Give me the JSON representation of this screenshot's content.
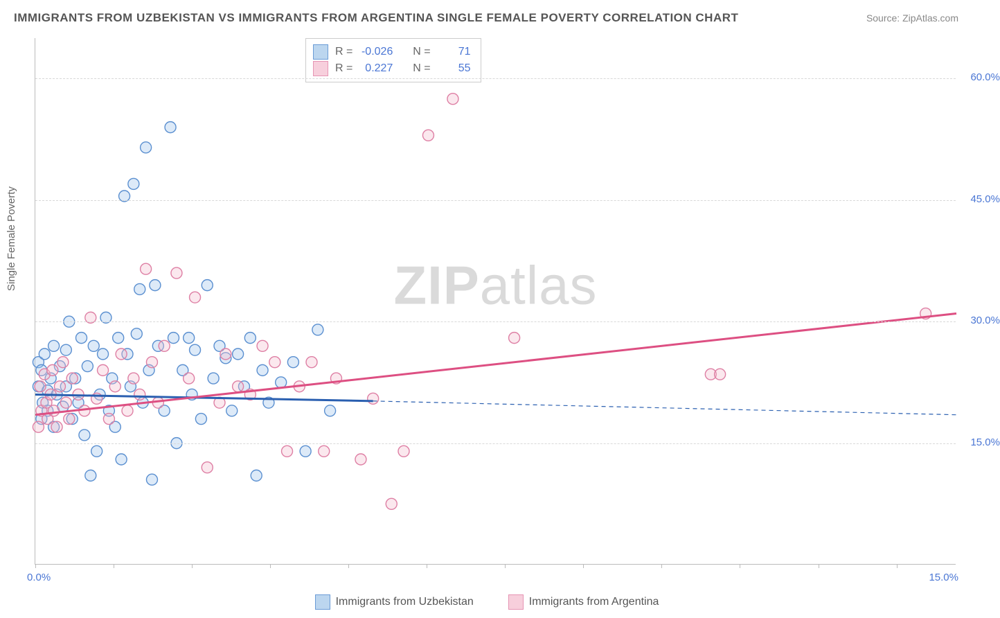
{
  "title": "IMMIGRANTS FROM UZBEKISTAN VS IMMIGRANTS FROM ARGENTINA SINGLE FEMALE POVERTY CORRELATION CHART",
  "source_label": "Source:",
  "source_name": "ZipAtlas.com",
  "watermark_bold": "ZIP",
  "watermark_light": "atlas",
  "chart": {
    "type": "scatter",
    "ylabel": "Single Female Poverty",
    "xlim": [
      0,
      15
    ],
    "ylim": [
      0,
      65
    ],
    "x_ticks_labels": {
      "min": "0.0%",
      "max": "15.0%"
    },
    "x_tick_positions_pct": [
      0,
      8.5,
      17,
      25.5,
      34,
      42.5,
      51,
      59.5,
      68,
      76.5,
      85,
      93.5
    ],
    "y_gridlines": [
      15,
      30,
      45,
      60
    ],
    "y_tick_labels": [
      "15.0%",
      "30.0%",
      "45.0%",
      "60.0%"
    ],
    "background_color": "#ffffff",
    "grid_color": "#d8d8d8",
    "axis_color": "#bbbbbb",
    "tick_label_color": "#4a76d4",
    "marker_radius": 8,
    "marker_fill_opacity": 0.35,
    "marker_stroke_width": 1.4,
    "series": [
      {
        "name": "Immigrants from Uzbekistan",
        "color_fill": "#9fc4ea",
        "color_stroke": "#5a8fd0",
        "swatch_fill": "#bcd6ef",
        "swatch_border": "#6a9bd6",
        "R": "-0.026",
        "N": "71",
        "trend": {
          "color": "#2a5fb0",
          "width": 3,
          "x1": 0,
          "y1": 21.0,
          "x2": 5.5,
          "y2": 20.2,
          "dash_x2": 15,
          "dash_y2": 18.5
        },
        "points": [
          [
            0.05,
            22
          ],
          [
            0.05,
            25
          ],
          [
            0.1,
            18
          ],
          [
            0.1,
            24
          ],
          [
            0.12,
            20
          ],
          [
            0.15,
            26
          ],
          [
            0.2,
            19
          ],
          [
            0.2,
            21.5
          ],
          [
            0.25,
            23
          ],
          [
            0.3,
            17
          ],
          [
            0.3,
            27
          ],
          [
            0.35,
            21
          ],
          [
            0.4,
            24.5
          ],
          [
            0.45,
            19.5
          ],
          [
            0.5,
            22
          ],
          [
            0.5,
            26.5
          ],
          [
            0.55,
            30
          ],
          [
            0.6,
            18
          ],
          [
            0.65,
            23
          ],
          [
            0.7,
            20
          ],
          [
            0.75,
            28
          ],
          [
            0.8,
            16
          ],
          [
            0.85,
            24.5
          ],
          [
            0.9,
            11
          ],
          [
            0.95,
            27
          ],
          [
            1.0,
            14
          ],
          [
            1.05,
            21
          ],
          [
            1.1,
            26
          ],
          [
            1.15,
            30.5
          ],
          [
            1.2,
            19
          ],
          [
            1.25,
            23
          ],
          [
            1.3,
            17
          ],
          [
            1.35,
            28
          ],
          [
            1.4,
            13
          ],
          [
            1.45,
            45.5
          ],
          [
            1.5,
            26
          ],
          [
            1.55,
            22
          ],
          [
            1.6,
            47
          ],
          [
            1.65,
            28.5
          ],
          [
            1.7,
            34
          ],
          [
            1.75,
            20
          ],
          [
            1.8,
            51.5
          ],
          [
            1.85,
            24
          ],
          [
            1.9,
            10.5
          ],
          [
            1.95,
            34.5
          ],
          [
            2.0,
            27
          ],
          [
            2.1,
            19
          ],
          [
            2.2,
            54
          ],
          [
            2.25,
            28
          ],
          [
            2.3,
            15
          ],
          [
            2.4,
            24
          ],
          [
            2.5,
            28
          ],
          [
            2.55,
            21
          ],
          [
            2.6,
            26.5
          ],
          [
            2.7,
            18
          ],
          [
            2.8,
            34.5
          ],
          [
            2.9,
            23
          ],
          [
            3.0,
            27
          ],
          [
            3.1,
            25.5
          ],
          [
            3.2,
            19
          ],
          [
            3.3,
            26
          ],
          [
            3.4,
            22
          ],
          [
            3.5,
            28
          ],
          [
            3.6,
            11
          ],
          [
            3.7,
            24
          ],
          [
            3.8,
            20
          ],
          [
            4.0,
            22.5
          ],
          [
            4.2,
            25
          ],
          [
            4.4,
            14
          ],
          [
            4.6,
            29
          ],
          [
            4.8,
            19
          ]
        ]
      },
      {
        "name": "Immigrants from Argentina",
        "color_fill": "#f3bccf",
        "color_stroke": "#de7fa4",
        "swatch_fill": "#f7cfdc",
        "swatch_border": "#e694b3",
        "R": "0.227",
        "N": "55",
        "trend": {
          "color": "#dd4f82",
          "width": 3,
          "x1": 0,
          "y1": 18.5,
          "x2": 15,
          "y2": 31
        },
        "points": [
          [
            0.05,
            17
          ],
          [
            0.08,
            22
          ],
          [
            0.1,
            19
          ],
          [
            0.15,
            23.5
          ],
          [
            0.18,
            20
          ],
          [
            0.2,
            18
          ],
          [
            0.25,
            21
          ],
          [
            0.28,
            24
          ],
          [
            0.3,
            19
          ],
          [
            0.35,
            17
          ],
          [
            0.4,
            22
          ],
          [
            0.45,
            25
          ],
          [
            0.5,
            20
          ],
          [
            0.55,
            18
          ],
          [
            0.6,
            23
          ],
          [
            0.7,
            21
          ],
          [
            0.8,
            19
          ],
          [
            0.9,
            30.5
          ],
          [
            1.0,
            20.5
          ],
          [
            1.1,
            24
          ],
          [
            1.2,
            18
          ],
          [
            1.3,
            22
          ],
          [
            1.4,
            26
          ],
          [
            1.5,
            19
          ],
          [
            1.6,
            23
          ],
          [
            1.7,
            21
          ],
          [
            1.8,
            36.5
          ],
          [
            1.9,
            25
          ],
          [
            2.0,
            20
          ],
          [
            2.1,
            27
          ],
          [
            2.3,
            36
          ],
          [
            2.5,
            23
          ],
          [
            2.6,
            33
          ],
          [
            2.8,
            12
          ],
          [
            3.0,
            20
          ],
          [
            3.1,
            26
          ],
          [
            3.3,
            22
          ],
          [
            3.5,
            21
          ],
          [
            3.7,
            27
          ],
          [
            3.9,
            25
          ],
          [
            4.1,
            14
          ],
          [
            4.3,
            22
          ],
          [
            4.5,
            25
          ],
          [
            4.7,
            14
          ],
          [
            4.9,
            23
          ],
          [
            5.3,
            13
          ],
          [
            5.5,
            20.5
          ],
          [
            5.8,
            7.5
          ],
          [
            6.0,
            14
          ],
          [
            6.4,
            53
          ],
          [
            6.8,
            57.5
          ],
          [
            7.8,
            28
          ],
          [
            11.0,
            23.5
          ],
          [
            11.15,
            23.5
          ],
          [
            14.5,
            31
          ]
        ]
      }
    ],
    "legend_labels": {
      "R": "R =",
      "N": "N ="
    }
  }
}
